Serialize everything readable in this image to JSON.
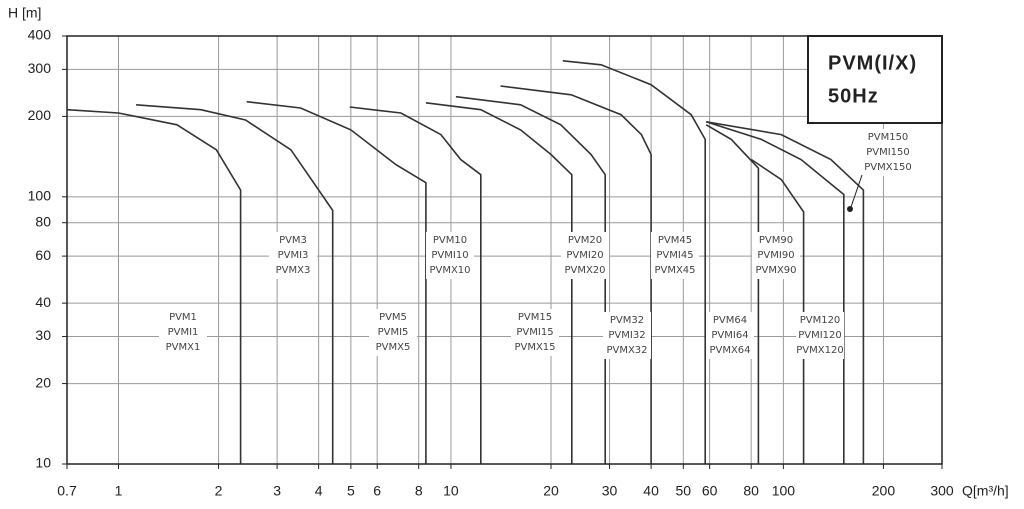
{
  "chart_data": {
    "type": "line",
    "title": "PVM(I/X)",
    "subtitle": "50Hz",
    "y_label": "H [m]",
    "x_label": "Q[m³/h]",
    "xscale": "log",
    "yscale": "log",
    "grid": true,
    "xlim": [
      0.7,
      300
    ],
    "ylim": [
      10,
      400
    ],
    "xticks": [
      0.7,
      1,
      2,
      3,
      4,
      5,
      6,
      8,
      10,
      20,
      30,
      40,
      50,
      60,
      80,
      100,
      200,
      300
    ],
    "yticks": [
      10,
      20,
      30,
      40,
      60,
      80,
      100,
      200,
      300,
      400
    ],
    "series": [
      {
        "labels": [
          "PVM1",
          "PVMI1",
          "PVMX1"
        ],
        "color": "#333333",
        "x": [
          0.7,
          1,
          1.5,
          1.97,
          2.33,
          2.33
        ],
        "values": [
          212,
          206,
          186,
          150,
          106,
          10
        ]
      },
      {
        "labels": [
          "PVM3",
          "PVMI3",
          "PVMX3"
        ],
        "color": "#333333",
        "x": [
          1.13,
          1.77,
          2.41,
          3.3,
          4.41,
          4.41
        ],
        "values": [
          221,
          212,
          194,
          150,
          89,
          10
        ]
      },
      {
        "labels": [
          "PVM5",
          "PVMI5",
          "PVMX5"
        ],
        "color": "#333333",
        "x": [
          2.43,
          3.53,
          5,
          6.83,
          8.41,
          8.41
        ],
        "values": [
          227,
          215,
          178,
          132,
          113,
          10
        ]
      },
      {
        "labels": [
          "PVM10",
          "PVMI10",
          "PVMX10"
        ],
        "color": "#333333",
        "x": [
          4.96,
          7.07,
          9.33,
          10.7,
          12.3,
          12.3
        ],
        "values": [
          217,
          206,
          171,
          138,
          121,
          10
        ]
      },
      {
        "labels": [
          "PVM15",
          "PVMI15",
          "PVMX15"
        ],
        "color": "#333333",
        "x": [
          8.41,
          12.3,
          16.2,
          20,
          23.1,
          23.1
        ],
        "values": [
          225,
          212,
          178,
          144,
          121,
          10
        ]
      },
      {
        "labels": [
          "PVM20",
          "PVMI20",
          "PVMX20"
        ],
        "color": "#333333",
        "x": [
          10.35,
          16.2,
          21.4,
          26.4,
          29.1,
          29.1
        ],
        "values": [
          237,
          221,
          186,
          144,
          121,
          10
        ]
      },
      {
        "labels": [
          "PVM32",
          "PVMI32",
          "PVMX32"
        ],
        "color": "#333333",
        "x": [
          14.1,
          23,
          32.5,
          37.4,
          40,
          40
        ],
        "values": [
          260,
          241,
          203,
          171,
          144,
          10
        ]
      },
      {
        "labels": [
          "PVM45",
          "PVMI45",
          "PVMX45"
        ],
        "color": "#333333",
        "x": [
          21.7,
          28.3,
          40,
          52.8,
          58.2,
          58.2
        ],
        "values": [
          323,
          312,
          263,
          203,
          164,
          10
        ]
      },
      {
        "labels": [
          "PVM64",
          "PVMI64",
          "PVMX64"
        ],
        "color": "#333333",
        "x": [
          58.6,
          69.7,
          84.1,
          84.1
        ],
        "values": [
          186,
          164,
          128,
          10
        ]
      },
      {
        "labels": [
          "PVM90",
          "PVMI90",
          "PVMX90"
        ],
        "color": "#333333",
        "x": [
          80.1,
          98.6,
          115,
          115
        ],
        "values": [
          138,
          116,
          87.8,
          10
        ]
      },
      {
        "labels": [
          "PVM120",
          "PVMI120",
          "PVMX120"
        ],
        "color": "#333333",
        "x": [
          58.6,
          85.8,
          113,
          152,
          152
        ],
        "values": [
          191,
          164,
          138,
          102,
          10
        ]
      },
      {
        "labels": [
          "PVM150",
          "PVMI150",
          "PVMX150"
        ],
        "color": "#333333",
        "x": [
          58.6,
          98.6,
          139,
          174,
          174
        ],
        "values": [
          191,
          171,
          138,
          106,
          10
        ]
      }
    ]
  }
}
